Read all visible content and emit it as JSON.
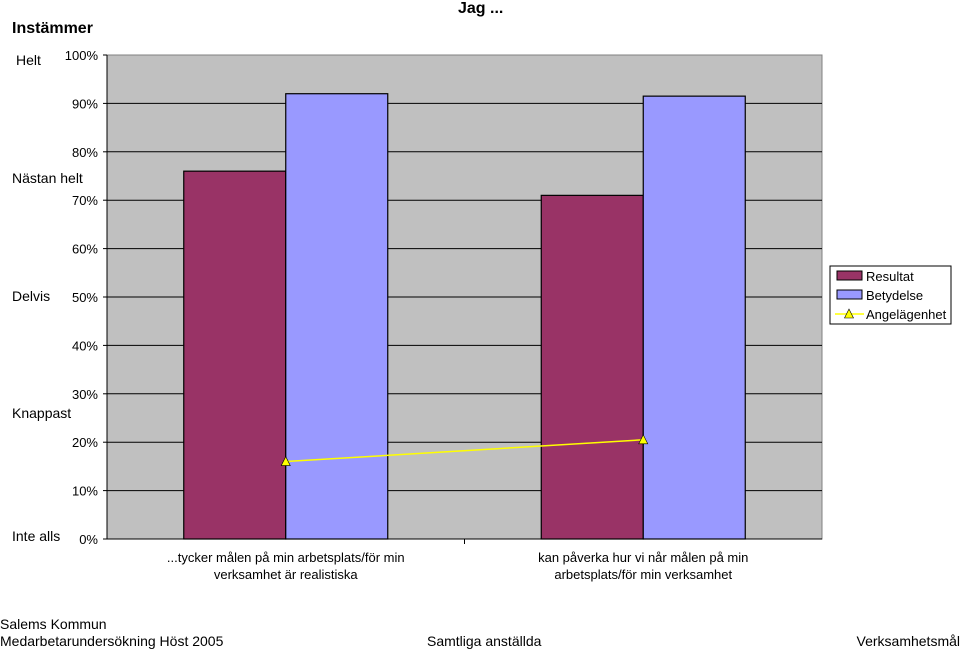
{
  "title": "Jag ...",
  "scale": {
    "heading": "Instämmer",
    "labels": [
      {
        "text": "Helt",
        "value": 100
      },
      {
        "text": "Nästan helt",
        "value": 75
      },
      {
        "text": "Delvis",
        "value": 50
      },
      {
        "text": "Knappast",
        "value": 25
      },
      {
        "text": "Inte alls",
        "value": 0
      }
    ]
  },
  "chart_data": {
    "type": "bar",
    "categories": [
      [
        "...tycker målen på min arbetsplats/för min",
        "verksamhet är realistiska"
      ],
      [
        "kan påverka hur vi når målen på min",
        "arbetsplats/för min verksamhet"
      ]
    ],
    "series": [
      {
        "name": "Resultat",
        "type": "bar",
        "color": "#993366",
        "values": [
          76,
          71
        ]
      },
      {
        "name": "Betydelse",
        "type": "bar",
        "color": "#9999ff",
        "values": [
          92,
          91.5
        ]
      },
      {
        "name": "Angelägenhet",
        "type": "line",
        "color": "#ffff00",
        "marker": "triangle",
        "values": [
          16,
          20.5
        ]
      }
    ],
    "ylim": [
      0,
      100
    ],
    "yticks": [
      "0%",
      "10%",
      "20%",
      "30%",
      "40%",
      "50%",
      "60%",
      "70%",
      "80%",
      "90%",
      "100%"
    ],
    "grid": true,
    "plot_background": "#c0c0c0",
    "legend": "right"
  },
  "footer": {
    "org": "Salems Kommun",
    "survey": "Medarbetarundersökning Höst 2005",
    "group": "Samtliga anställda",
    "section": "Verksamhetsmål"
  }
}
